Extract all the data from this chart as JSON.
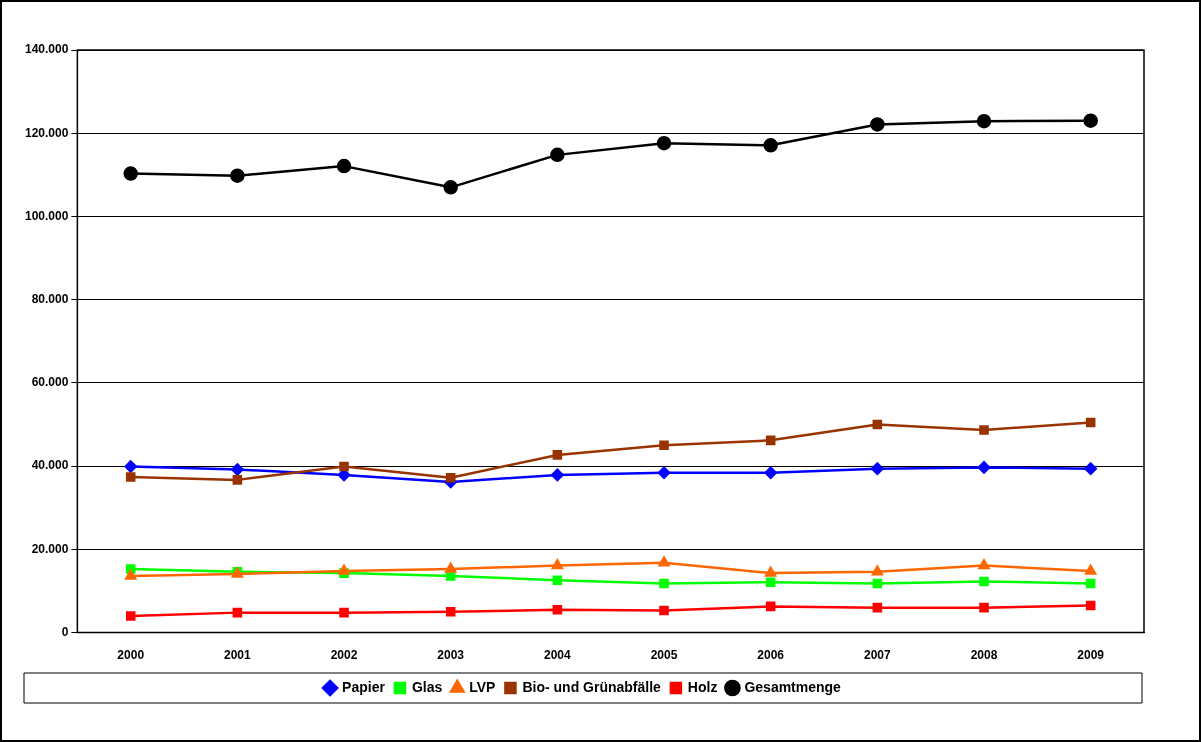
{
  "chart_data": {
    "type": "line",
    "categories": [
      "2000",
      "2001",
      "2002",
      "2003",
      "2004",
      "2005",
      "2006",
      "2007",
      "2008",
      "2009"
    ],
    "series": [
      {
        "name": "Papier",
        "color": "#0000ff",
        "marker": "diamond",
        "values": [
          39900,
          39200,
          37900,
          36200,
          37900,
          38400,
          38400,
          39400,
          39700,
          39400
        ]
      },
      {
        "name": "Glas",
        "color": "#00ff00",
        "marker": "square",
        "values": [
          15300,
          14600,
          14300,
          13600,
          12600,
          11800,
          12100,
          11800,
          12300,
          11800
        ]
      },
      {
        "name": "LVP",
        "color": "#ff6600",
        "marker": "triangle",
        "values": [
          13600,
          14100,
          14800,
          15300,
          16100,
          16800,
          14300,
          14600,
          16100,
          14800
        ]
      },
      {
        "name": "Bio- und Grünabfälle",
        "color": "#993300",
        "marker": "square",
        "values": [
          37400,
          36700,
          39900,
          37200,
          42700,
          45000,
          46200,
          50000,
          48700,
          50500
        ]
      },
      {
        "name": "Holz",
        "color": "#ff0000",
        "marker": "square",
        "values": [
          4000,
          4800,
          4800,
          5000,
          5500,
          5300,
          6300,
          6000,
          6000,
          6500
        ]
      },
      {
        "name": "Gesamtmenge",
        "color": "#000000",
        "marker": "circle",
        "values": [
          110300,
          109800,
          112100,
          107000,
          114800,
          117600,
          117100,
          122100,
          122900,
          123000
        ]
      }
    ],
    "ylim": [
      0,
      140000
    ],
    "yticks": [
      {
        "value": 0,
        "label": "0"
      },
      {
        "value": 20000,
        "label": "20.000"
      },
      {
        "value": 40000,
        "label": "40.000"
      },
      {
        "value": 60000,
        "label": "60.000"
      },
      {
        "value": 80000,
        "label": "80.000"
      },
      {
        "value": 100000,
        "label": "100.000"
      },
      {
        "value": 120000,
        "label": "120.000"
      },
      {
        "value": 140000,
        "label": "140.000"
      }
    ],
    "grid": "y",
    "legend": "bottom",
    "line_style": "solid"
  }
}
